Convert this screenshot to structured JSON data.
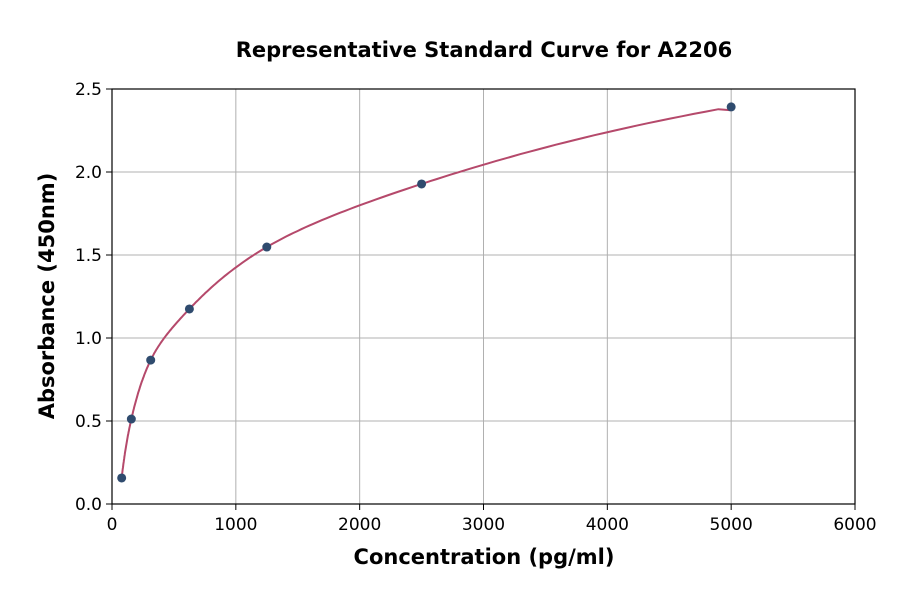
{
  "chart_data": {
    "type": "scatter",
    "title": "Representative Standard Curve for A2206",
    "xlabel": "Concentration (pg/ml)",
    "ylabel": "Absorbance (450nm)",
    "xlim": [
      0,
      6000
    ],
    "ylim": [
      0,
      2.5
    ],
    "xticks": [
      "0",
      "1000",
      "2000",
      "3000",
      "4000",
      "5000",
      "6000"
    ],
    "yticks": [
      "0.0",
      "0.5",
      "1.0",
      "1.5",
      "2.0",
      "2.5"
    ],
    "grid": true,
    "points": {
      "x": [
        78.125,
        156.25,
        312.5,
        625,
        1250,
        2500,
        5000
      ],
      "y": [
        0.157,
        0.512,
        0.867,
        1.175,
        1.548,
        1.928,
        2.392
      ]
    },
    "fit_curve": true,
    "colors": {
      "points": "#2f4b6e",
      "curve": "#b5496b",
      "grid": "#b0b0b0"
    }
  }
}
